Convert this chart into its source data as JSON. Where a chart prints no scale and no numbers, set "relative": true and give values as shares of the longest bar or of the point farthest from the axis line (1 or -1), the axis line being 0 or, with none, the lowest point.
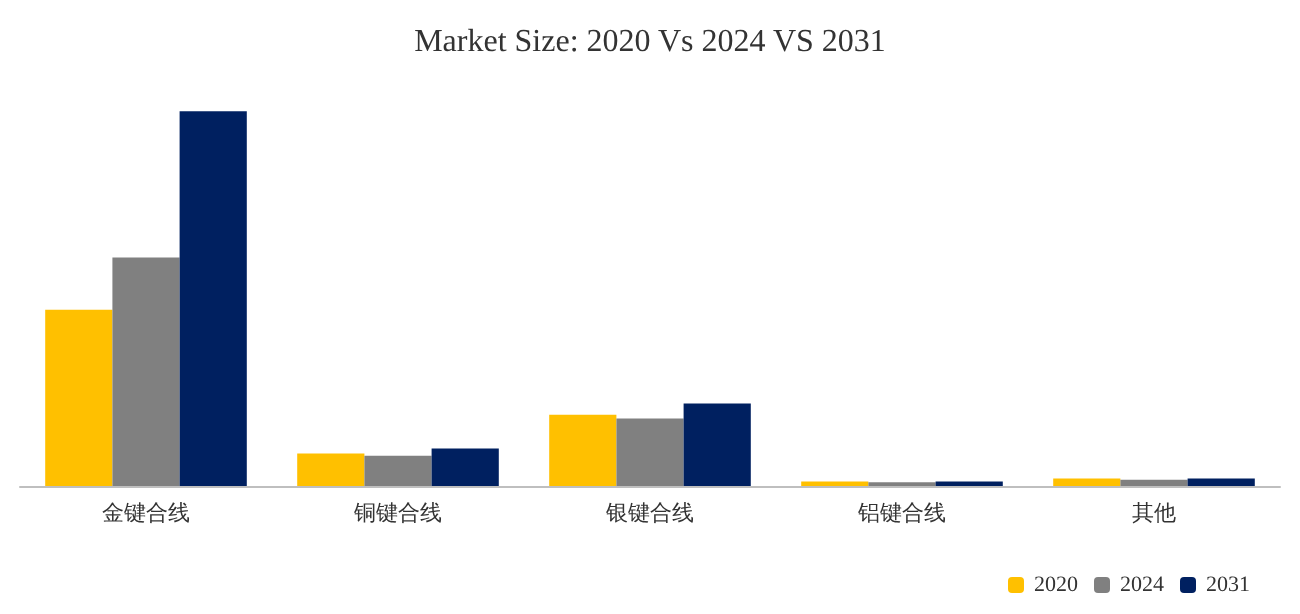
{
  "chart_data": {
    "type": "bar",
    "title": "Market Size: 2020 Vs 2024 VS 2031",
    "relative": true,
    "categories": [
      "金键合线",
      "铜键合线",
      "银键合线",
      "铝键合线",
      "其他"
    ],
    "series": [
      {
        "name": "2020",
        "color": "#ffc000",
        "values": [
          0.47,
          0.087,
          0.19,
          0.012,
          0.02
        ]
      },
      {
        "name": "2024",
        "color": "#808080",
        "values": [
          0.61,
          0.081,
          0.18,
          0.01,
          0.017
        ]
      },
      {
        "name": "2031",
        "color": "#002060",
        "values": [
          1,
          0.1,
          0.22,
          0.012,
          0.02
        ]
      }
    ],
    "legend": "bottom right"
  }
}
